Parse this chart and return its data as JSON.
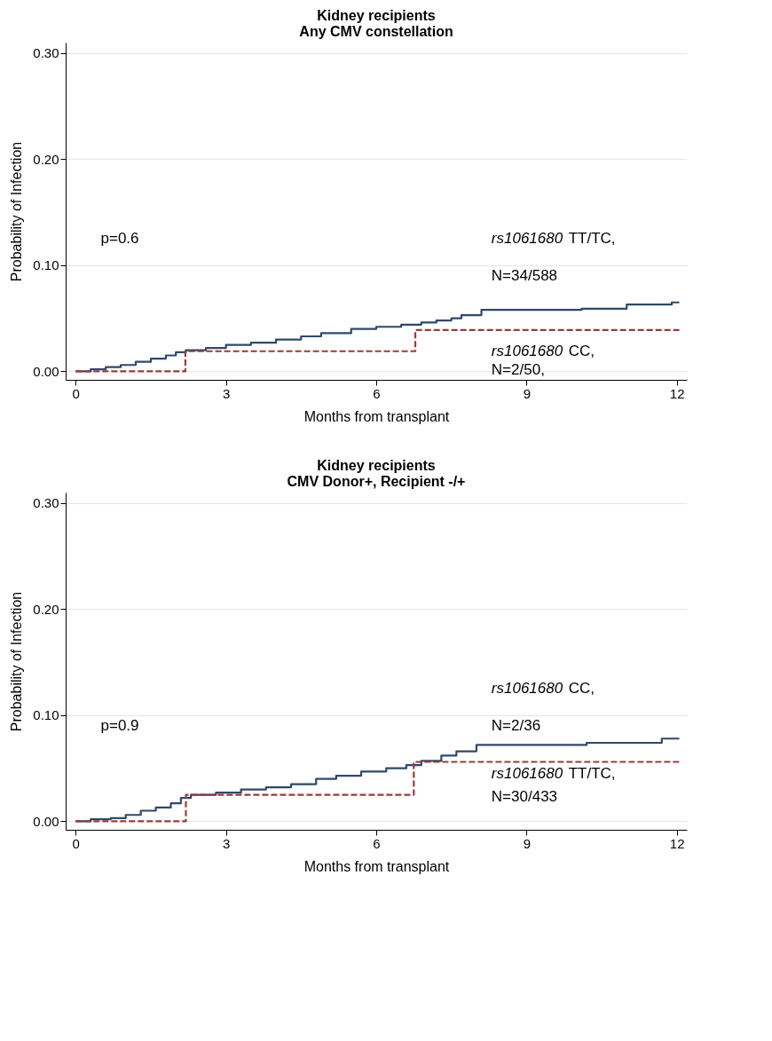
{
  "chart_data": [
    {
      "type": "step",
      "title": [
        "Kidney recipients",
        "Any CMV constellation"
      ],
      "xlabel": "Months from transplant",
      "ylabel": "Probability of Infection",
      "xlim": [
        -0.2,
        12.2
      ],
      "xticks": [
        0,
        3,
        6,
        9,
        12
      ],
      "ylim": [
        -0.008,
        0.31
      ],
      "yticks": [
        {
          "value": 0,
          "label": "0.00"
        },
        {
          "value": 0.1,
          "label": "0.10"
        },
        {
          "value": 0.2,
          "label": "0.20"
        },
        {
          "value": 0.3,
          "label": "0.30"
        }
      ],
      "grid": "y",
      "series": [
        {
          "color": "#2e4a6b",
          "line_style": "solid",
          "x": [
            0,
            0.3,
            0.6,
            0.9,
            1.2,
            1.5,
            1.8,
            2.0,
            2.2,
            2.6,
            3.0,
            3.5,
            4.0,
            4.5,
            4.9,
            5.5,
            6.0,
            6.5,
            6.9,
            7.2,
            7.5,
            7.7,
            8.1,
            9.0,
            10.1,
            11.0,
            11.9,
            12.05
          ],
          "values": [
            0,
            0.002,
            0.004,
            0.006,
            0.009,
            0.012,
            0.015,
            0.018,
            0.02,
            0.022,
            0.025,
            0.027,
            0.03,
            0.033,
            0.036,
            0.04,
            0.042,
            0.044,
            0.046,
            0.048,
            0.05,
            0.053,
            0.058,
            0.058,
            0.059,
            0.063,
            0.065,
            0.065
          ]
        },
        {
          "color": "#9b3b3b",
          "line_style": "dashed",
          "x": [
            0,
            2.19,
            6.78,
            12.05
          ],
          "values": [
            0,
            0.019,
            0.039,
            0.039
          ]
        }
      ],
      "annotations": [
        "p=0.6",
        "rs1061680 TT/TC,",
        "N=34/588",
        "rs1061680 CC,",
        "N=2/50,"
      ]
    },
    {
      "type": "step",
      "title": [
        "Kidney recipients",
        "CMV Donor+, Recipient -/+"
      ],
      "xlabel": "Months from transplant",
      "ylabel": "Probability of Infection",
      "xlim": [
        -0.2,
        12.2
      ],
      "xticks": [
        0,
        3,
        6,
        9,
        12
      ],
      "ylim": [
        -0.008,
        0.31
      ],
      "yticks": [
        {
          "value": 0,
          "label": "0.00"
        },
        {
          "value": 0.1,
          "label": "0.10"
        },
        {
          "value": 0.2,
          "label": "0.20"
        },
        {
          "value": 0.3,
          "label": "0.30"
        }
      ],
      "grid": "y",
      "series": [
        {
          "color": "#2e4a6b",
          "line_style": "solid",
          "x": [
            0,
            0.3,
            0.7,
            1.0,
            1.3,
            1.6,
            1.9,
            2.1,
            2.3,
            2.8,
            3.3,
            3.8,
            4.3,
            4.8,
            5.2,
            5.7,
            6.2,
            6.6,
            6.9,
            7.3,
            7.6,
            8.0,
            10.2,
            11.7,
            12.05
          ],
          "values": [
            0,
            0.002,
            0.003,
            0.006,
            0.01,
            0.013,
            0.017,
            0.022,
            0.025,
            0.027,
            0.03,
            0.032,
            0.035,
            0.04,
            0.043,
            0.047,
            0.05,
            0.053,
            0.057,
            0.062,
            0.066,
            0.072,
            0.074,
            0.078,
            0.078
          ]
        },
        {
          "color": "#9b3b3b",
          "line_style": "dashed",
          "x": [
            0,
            2.2,
            6.75,
            12.05
          ],
          "values": [
            0,
            0.025,
            0.056,
            0.056
          ]
        }
      ],
      "annotations": [
        "p=0.9",
        "rs1061680 CC,",
        "N=2/36",
        "rs1061680 TT/TC,",
        "N=30/433"
      ]
    }
  ]
}
